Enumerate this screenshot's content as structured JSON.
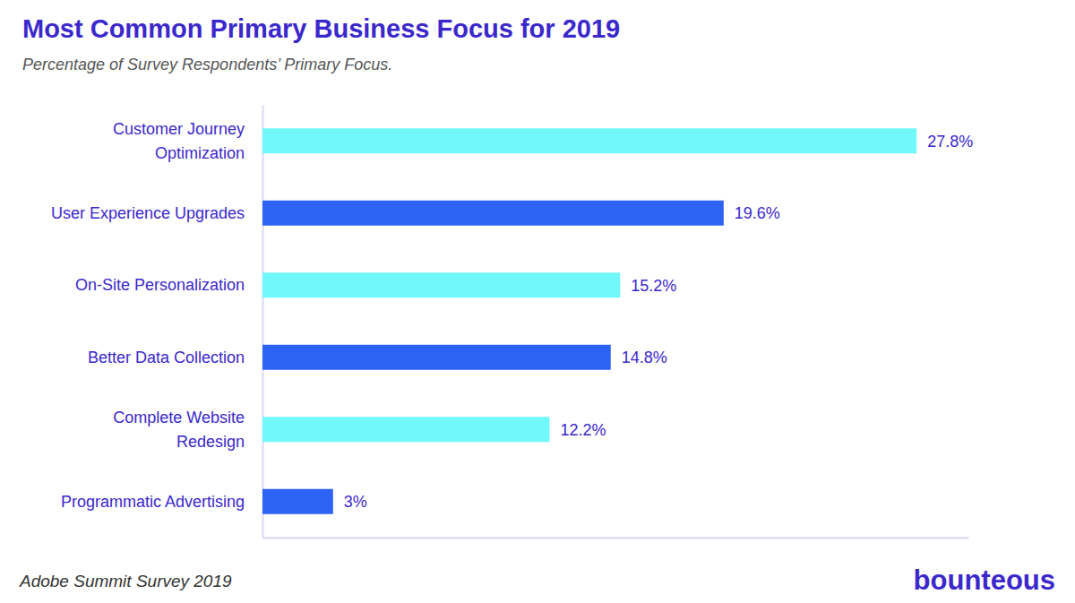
{
  "chart_data": {
    "type": "bar",
    "orientation": "horizontal",
    "title": "Most Common Primary Business Focus for 2019",
    "subtitle": "Percentage of Survey Respondents’ Primary Focus.",
    "source": "Adobe Summit Survey 2019",
    "brand": "bounteous",
    "categories": [
      "Customer Journey Optimization",
      "User Experience Upgrades",
      "On-Site Personalization",
      "Better Data Collection",
      "Complete Website Redesign",
      "Programmatic Advertising"
    ],
    "values": [
      27.8,
      19.6,
      15.2,
      14.8,
      12.2,
      3
    ],
    "value_labels": [
      "27.8%",
      "19.6%",
      "15.2%",
      "14.8%",
      "12.2%",
      "3%"
    ],
    "colors": [
      "#70f8fa",
      "#2d63f4",
      "#70f8fa",
      "#2d63f4",
      "#70f8fa",
      "#2d63f4"
    ],
    "xlim": [
      0,
      30
    ],
    "data_labels": true,
    "tick_labels": "y",
    "grid": false
  }
}
